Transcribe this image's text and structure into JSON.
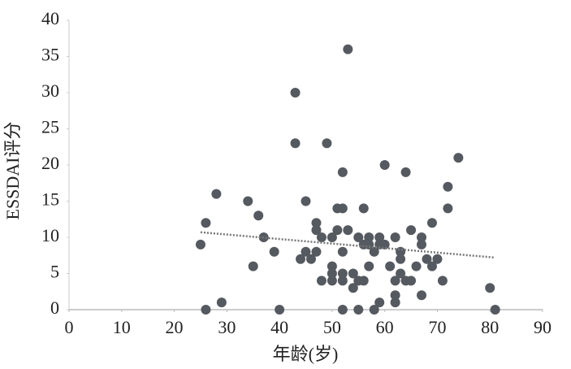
{
  "chart_data": {
    "type": "scatter",
    "x_label": "年龄(岁)",
    "y_label": "ESSDAI评分",
    "xlim": [
      0,
      90
    ],
    "xticks": [
      0,
      10,
      20,
      30,
      40,
      50,
      60,
      70,
      80,
      90
    ],
    "ylim": [
      0,
      40
    ],
    "yticks": [
      0,
      5,
      10,
      15,
      20,
      25,
      30,
      35,
      40
    ],
    "color": "#555a60",
    "x": [
      25,
      26,
      26,
      28,
      29,
      34,
      35,
      36,
      37,
      39,
      40,
      43,
      43,
      44,
      45,
      45,
      46,
      47,
      47,
      47,
      48,
      48,
      49,
      50,
      50,
      50,
      50,
      51,
      51,
      52,
      52,
      52,
      52,
      52,
      52,
      53,
      53,
      54,
      54,
      55,
      55,
      55,
      56,
      56,
      56,
      57,
      57,
      57,
      58,
      58,
      59,
      59,
      59,
      60,
      60,
      61,
      62,
      62,
      62,
      62,
      63,
      63,
      63,
      64,
      64,
      65,
      65,
      66,
      67,
      67,
      67,
      68,
      69,
      69,
      70,
      71,
      72,
      72,
      74,
      80,
      81
    ],
    "y": [
      9,
      12,
      0,
      16,
      1,
      15,
      6,
      13,
      10,
      8,
      0,
      30,
      23,
      7,
      15,
      8,
      7,
      12,
      11,
      8,
      10,
      4,
      23,
      6,
      10,
      5,
      4,
      14,
      11,
      19,
      14,
      8,
      5,
      0,
      4,
      36,
      11,
      5,
      3,
      10,
      4,
      0,
      14,
      9,
      4,
      10,
      9,
      6,
      8,
      0,
      10,
      9,
      1,
      20,
      9,
      6,
      10,
      4,
      2,
      1,
      8,
      7,
      5,
      19,
      4,
      11,
      4,
      6,
      10,
      9,
      2,
      7,
      12,
      6,
      7,
      4,
      17,
      14,
      21,
      3,
      0
    ],
    "trendline": {
      "x": [
        25,
        81
      ],
      "y": [
        10.7,
        7.2
      ],
      "color": "#777777"
    }
  }
}
